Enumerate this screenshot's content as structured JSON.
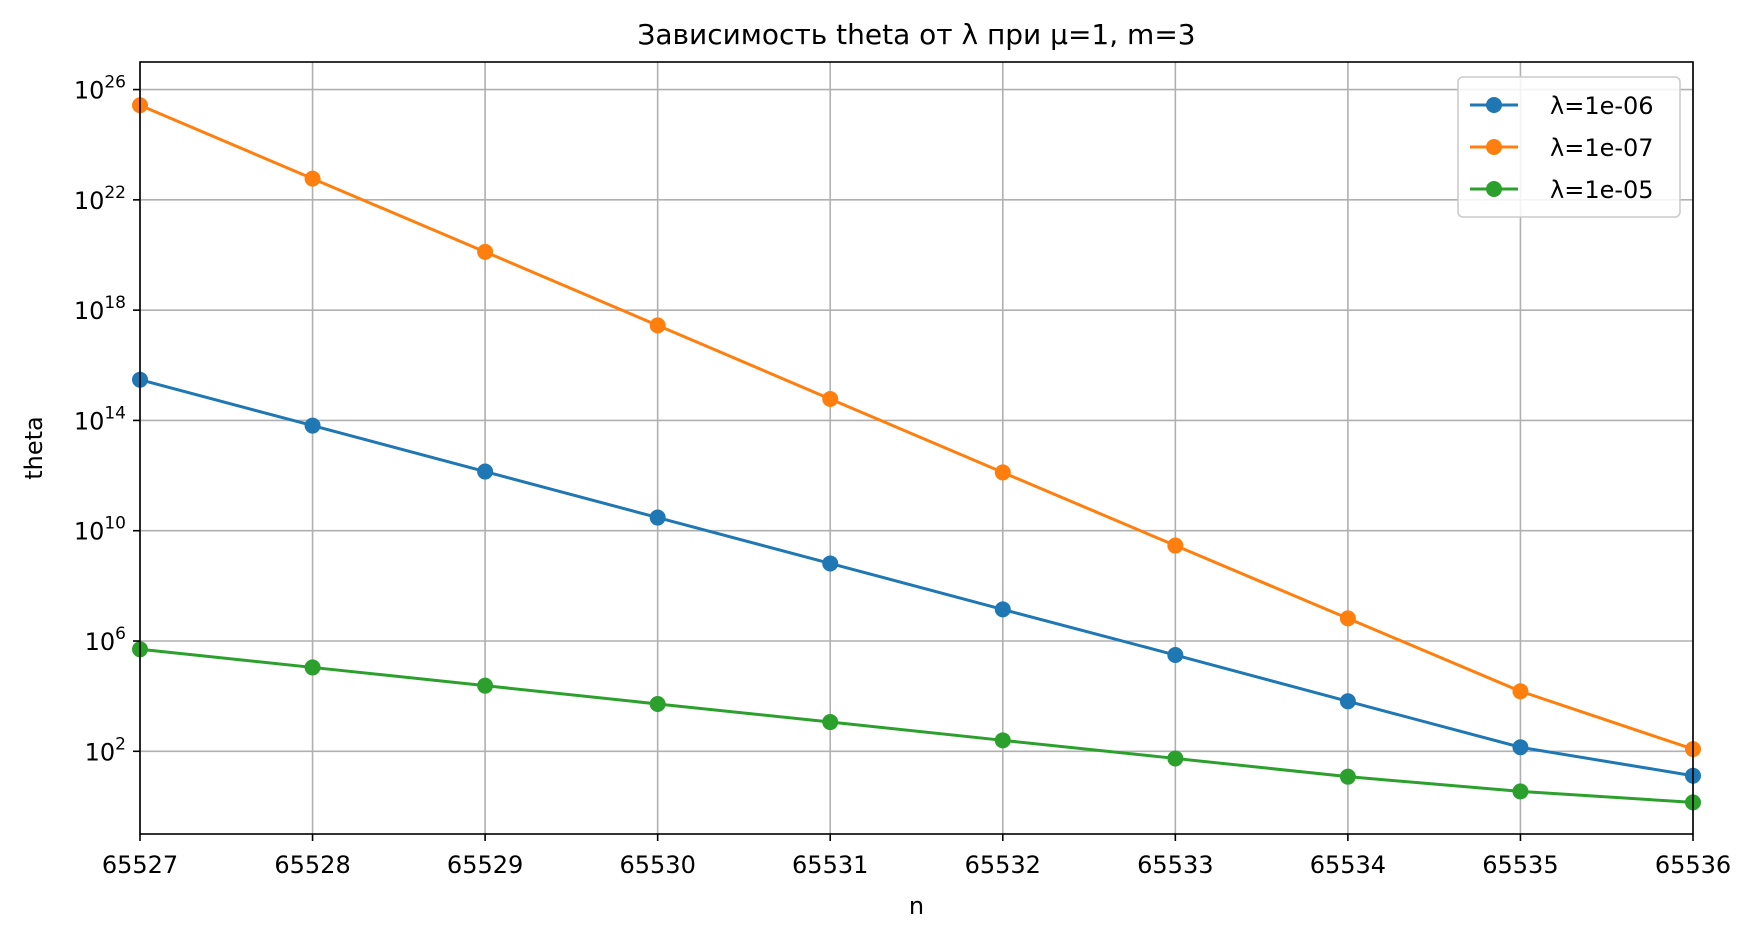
{
  "chart_data": {
    "type": "line",
    "title": "Зависимость theta от λ при μ=1, m=3",
    "xlabel": "n",
    "ylabel": "theta",
    "x": [
      65527,
      65528,
      65529,
      65530,
      65531,
      65532,
      65533,
      65534,
      65535,
      65536
    ],
    "x_ticks": [
      "65527",
      "65528",
      "65529",
      "65530",
      "65531",
      "65532",
      "65533",
      "65534",
      "65535",
      "65536"
    ],
    "xlim": [
      65527,
      65536
    ],
    "yscale": "log",
    "ylim": [
      0.1,
      1e+27
    ],
    "y_ticks": [
      {
        "base": "10",
        "exp": "2",
        "value": 100.0
      },
      {
        "base": "10",
        "exp": "6",
        "value": 1000000.0
      },
      {
        "base": "10",
        "exp": "10",
        "value": 10000000000.0
      },
      {
        "base": "10",
        "exp": "14",
        "value": 100000000000000.0
      },
      {
        "base": "10",
        "exp": "18",
        "value": 1e+18
      },
      {
        "base": "10",
        "exp": "22",
        "value": 1e+22
      },
      {
        "base": "10",
        "exp": "26",
        "value": 1e+26
      }
    ],
    "grid": true,
    "legend_position": "top-right",
    "series": [
      {
        "name": "λ=1e-06",
        "color": "#1f77b4",
        "values": [
          3000000000000000.0,
          65000000000000.0,
          1400000000000.0,
          30000000000.0,
          650000000.0,
          14000000.0,
          310000.0,
          6500.0,
          140.0,
          13.0
        ]
      },
      {
        "name": "λ=1e-07",
        "color": "#ff7f0e",
        "values": [
          2.7e+25,
          5.9e+22,
          1.3e+20,
          2.8e+17,
          600000000000000.0,
          1300000000000.0,
          2900000000.0,
          6600000.0,
          15000.0,
          120.0
        ]
      },
      {
        "name": "λ=1e-05",
        "color": "#2ca02c",
        "values": [
          500000.0,
          110000.0,
          24000.0,
          5200.0,
          1150.0,
          250.0,
          55.0,
          12.0,
          3.5,
          1.4
        ]
      }
    ]
  }
}
